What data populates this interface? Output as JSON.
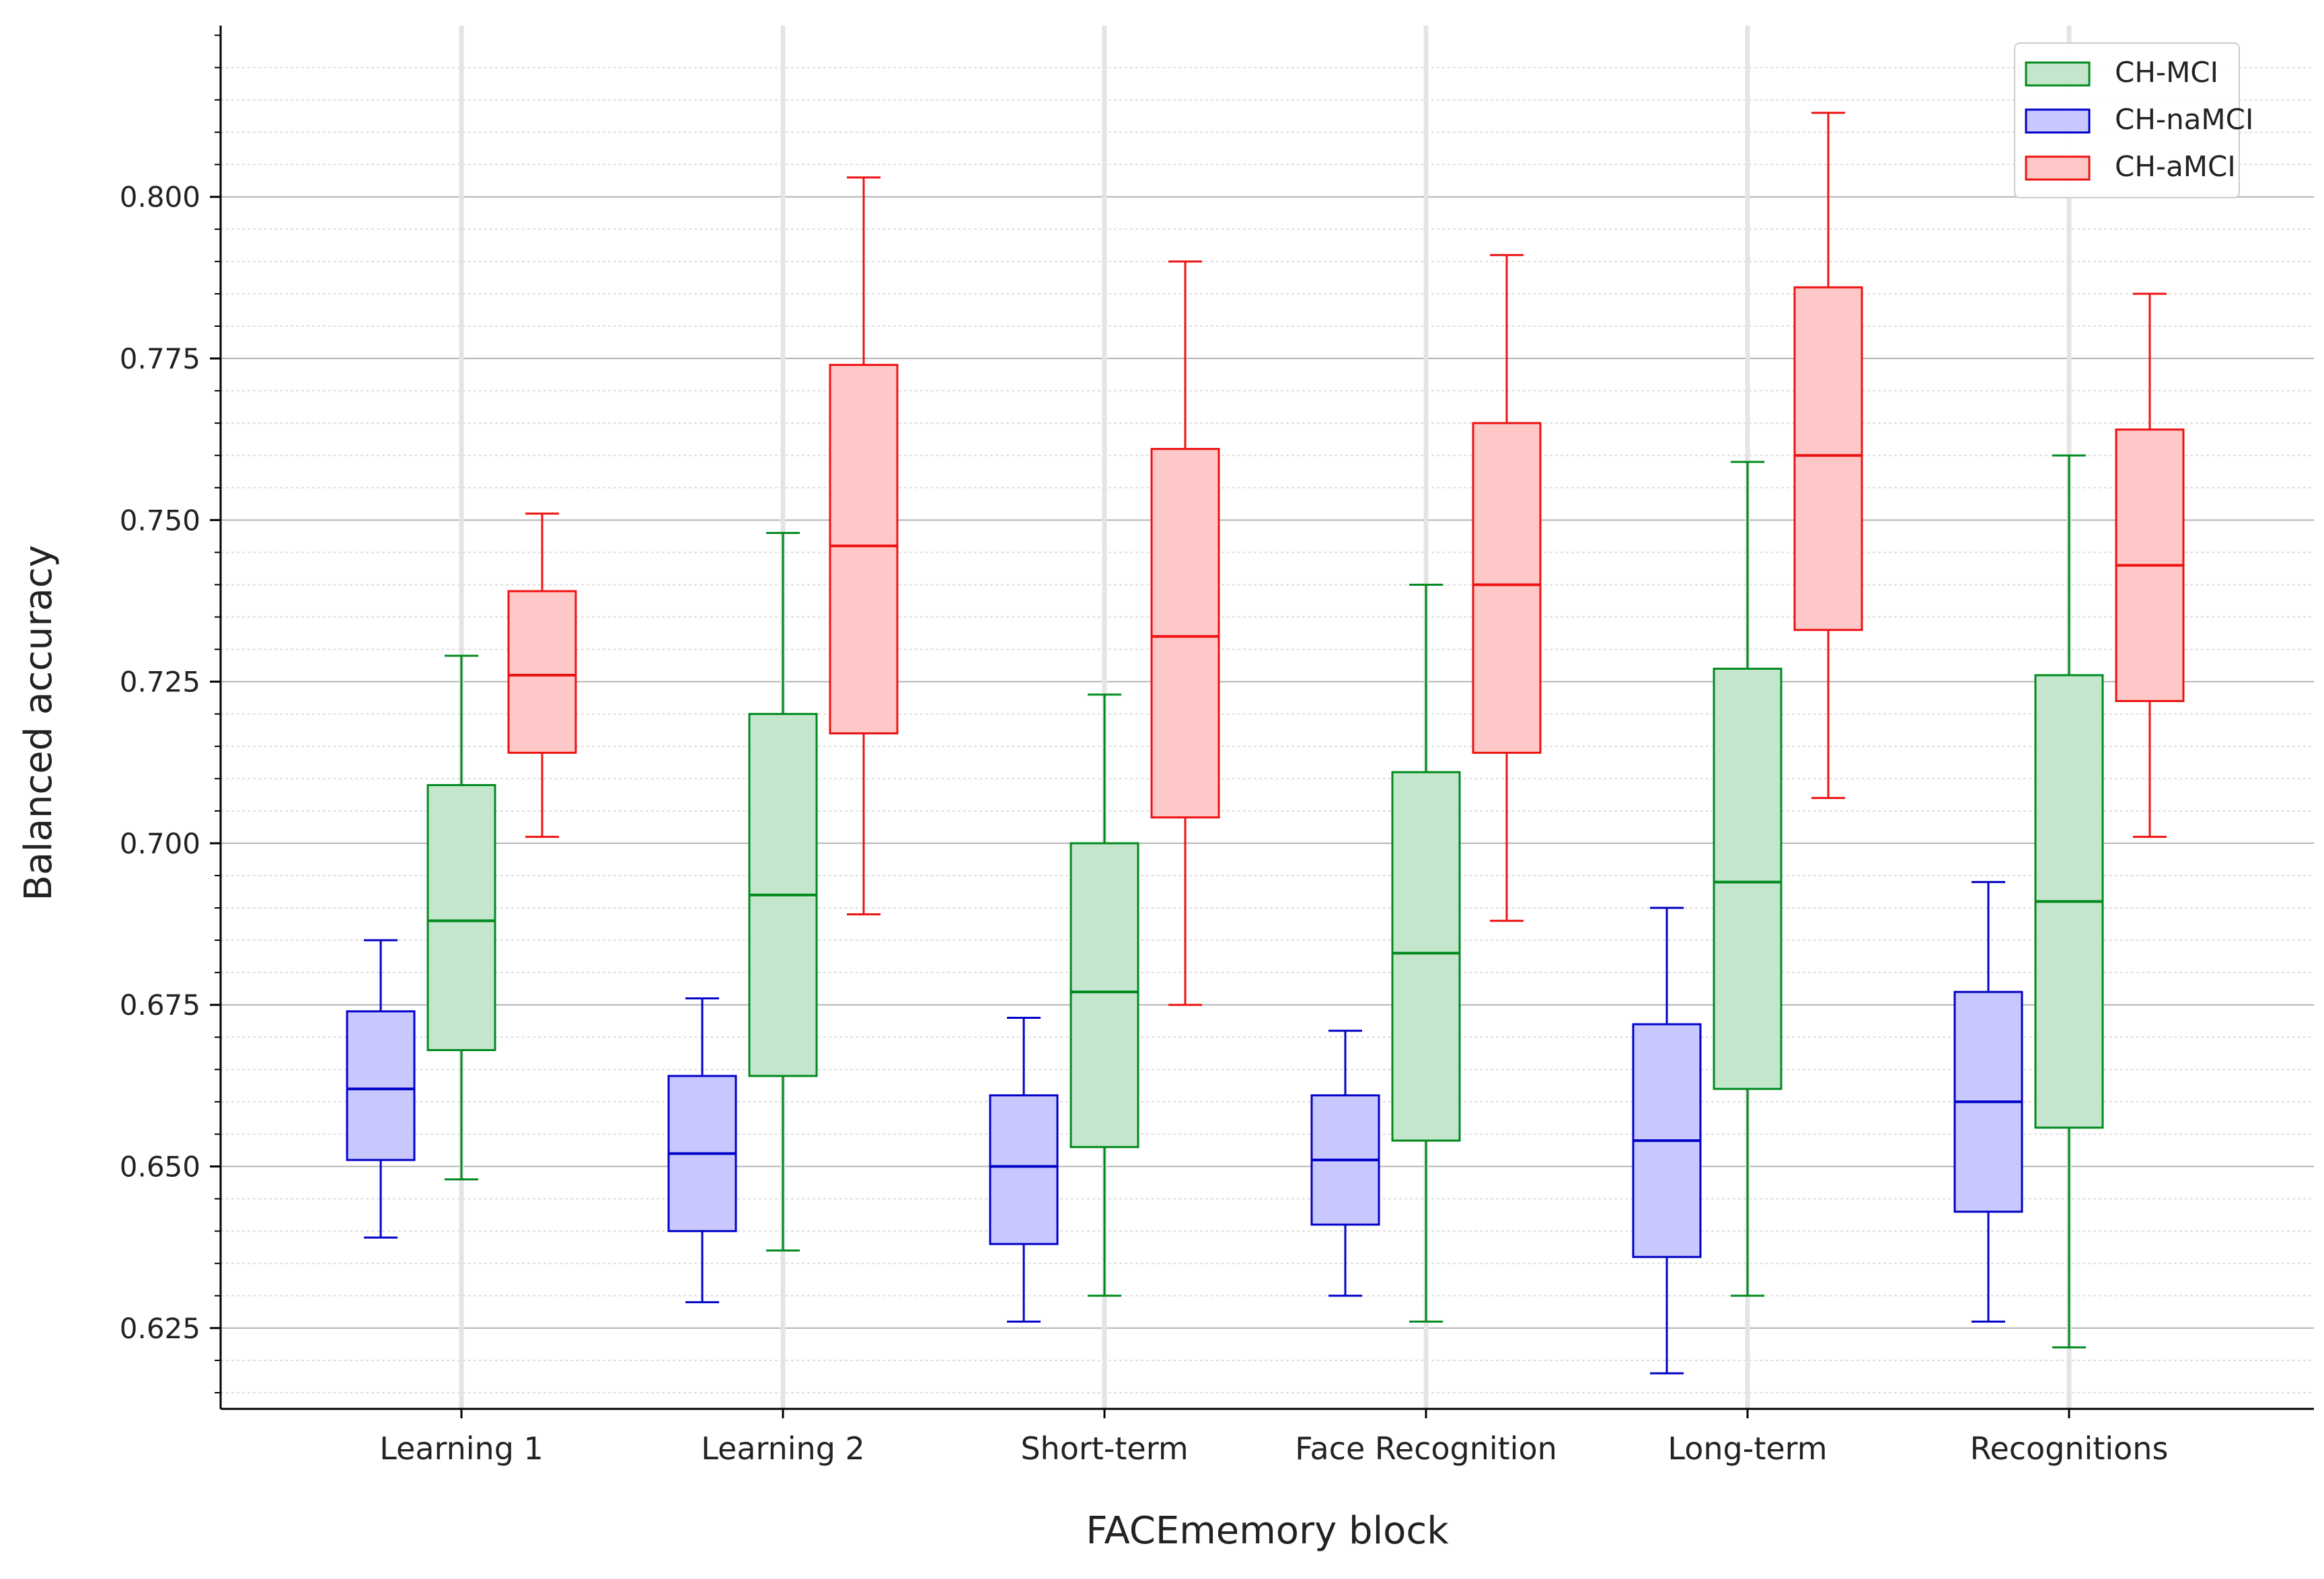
{
  "chart_data": {
    "type": "box",
    "xlabel": "FACEmemory block",
    "ylabel": "Balanced accuracy",
    "ylim": [
      0.6125,
      0.8265
    ],
    "yticks": [
      0.625,
      0.65,
      0.675,
      0.7,
      0.725,
      0.75,
      0.775,
      0.8
    ],
    "ytick_labels": [
      "0.625",
      "0.650",
      "0.675",
      "0.700",
      "0.725",
      "0.750",
      "0.775",
      "0.800"
    ],
    "categories": [
      "Learning 1",
      "Learning 2",
      "Short-term",
      "Face Recognition",
      "Long-term",
      "Recognitions"
    ],
    "legend_position": "top-right",
    "series": [
      {
        "name": "CH-MCI",
        "stroke": "#008a1e",
        "fill": "#c4e6cc",
        "boxes": [
          {
            "whislo": 0.648,
            "q1": 0.668,
            "med": 0.688,
            "q3": 0.709,
            "whishi": 0.729
          },
          {
            "whislo": 0.637,
            "q1": 0.664,
            "med": 0.692,
            "q3": 0.72,
            "whishi": 0.748
          },
          {
            "whislo": 0.63,
            "q1": 0.653,
            "med": 0.677,
            "q3": 0.7,
            "whishi": 0.723
          },
          {
            "whislo": 0.626,
            "q1": 0.654,
            "med": 0.683,
            "q3": 0.711,
            "whishi": 0.74
          },
          {
            "whislo": 0.63,
            "q1": 0.662,
            "med": 0.694,
            "q3": 0.727,
            "whishi": 0.759
          },
          {
            "whislo": 0.622,
            "q1": 0.656,
            "med": 0.691,
            "q3": 0.726,
            "whishi": 0.76
          }
        ]
      },
      {
        "name": "CH-naMCI",
        "stroke": "#0000c8",
        "fill": "#c8c8ff",
        "boxes": [
          {
            "whislo": 0.639,
            "q1": 0.651,
            "med": 0.662,
            "q3": 0.674,
            "whishi": 0.685
          },
          {
            "whislo": 0.629,
            "q1": 0.64,
            "med": 0.652,
            "q3": 0.664,
            "whishi": 0.676
          },
          {
            "whislo": 0.626,
            "q1": 0.638,
            "med": 0.65,
            "q3": 0.661,
            "whishi": 0.673
          },
          {
            "whislo": 0.63,
            "q1": 0.641,
            "med": 0.651,
            "q3": 0.661,
            "whishi": 0.671
          },
          {
            "whislo": 0.618,
            "q1": 0.636,
            "med": 0.654,
            "q3": 0.672,
            "whishi": 0.69
          },
          {
            "whislo": 0.626,
            "q1": 0.643,
            "med": 0.66,
            "q3": 0.677,
            "whishi": 0.694
          }
        ]
      },
      {
        "name": "CH-aMCI",
        "stroke": "#ee1111",
        "fill": "#ffc8c8",
        "boxes": [
          {
            "whislo": 0.701,
            "q1": 0.714,
            "med": 0.726,
            "q3": 0.739,
            "whishi": 0.751
          },
          {
            "whislo": 0.689,
            "q1": 0.717,
            "med": 0.746,
            "q3": 0.774,
            "whishi": 0.803
          },
          {
            "whislo": 0.675,
            "q1": 0.704,
            "med": 0.732,
            "q3": 0.761,
            "whishi": 0.79
          },
          {
            "whislo": 0.688,
            "q1": 0.714,
            "med": 0.74,
            "q3": 0.765,
            "whishi": 0.791
          },
          {
            "whislo": 0.707,
            "q1": 0.733,
            "med": 0.76,
            "q3": 0.786,
            "whishi": 0.813
          },
          {
            "whislo": 0.701,
            "q1": 0.722,
            "med": 0.743,
            "q3": 0.764,
            "whishi": 0.785
          }
        ]
      }
    ]
  }
}
